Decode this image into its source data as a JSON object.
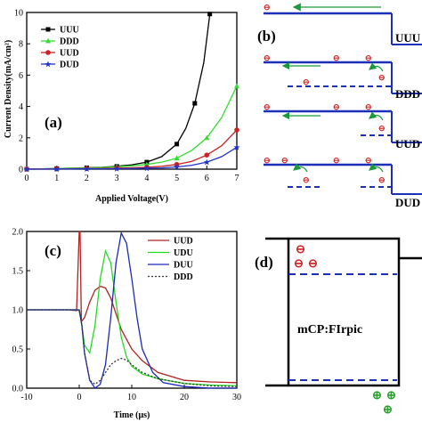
{
  "panel_labels": {
    "a": "(a)",
    "b": "(b)",
    "c": "(c)",
    "d": "(d)"
  },
  "chart_data": [
    {
      "type": "line",
      "panel": "(a)",
      "ylabel": "Current Density(mA/cm²)",
      "xlabel": "Applied Voltage(V)",
      "xlim": [
        0,
        7
      ],
      "ylim": [
        0,
        10
      ],
      "xticks": [
        "0",
        "1",
        "2",
        "3",
        "4",
        "5",
        "6",
        "7"
      ],
      "yticks": [
        "0",
        "2",
        "4",
        "6",
        "8",
        "10"
      ],
      "legend_position": "top-left",
      "series": [
        {
          "name": "UUU",
          "color": "#000000",
          "marker": "square",
          "x": [
            0,
            0.5,
            1,
            1.5,
            2,
            2.5,
            3,
            3.5,
            4,
            4.5,
            5,
            5.3,
            5.6,
            5.9,
            6.1
          ],
          "y": [
            0,
            0.02,
            0.04,
            0.06,
            0.09,
            0.12,
            0.18,
            0.28,
            0.45,
            0.8,
            1.6,
            2.6,
            4.2,
            6.8,
            9.9
          ]
        },
        {
          "name": "DDD",
          "color": "#33dd33",
          "marker": "triangle",
          "x": [
            0,
            0.5,
            1,
            1.5,
            2,
            2.5,
            3,
            3.5,
            4,
            4.5,
            5,
            5.5,
            6,
            6.5,
            7
          ],
          "y": [
            0,
            0.02,
            0.04,
            0.06,
            0.08,
            0.11,
            0.15,
            0.21,
            0.3,
            0.45,
            0.7,
            1.2,
            2.0,
            3.3,
            5.3
          ]
        },
        {
          "name": "UUD",
          "color": "#cc2222",
          "marker": "circle",
          "x": [
            0,
            0.5,
            1,
            1.5,
            2,
            2.5,
            3,
            3.5,
            4,
            4.5,
            5,
            5.5,
            6,
            6.5,
            7
          ],
          "y": [
            0,
            0.01,
            0.02,
            0.03,
            0.04,
            0.05,
            0.07,
            0.09,
            0.12,
            0.18,
            0.3,
            0.5,
            0.9,
            1.5,
            2.5
          ]
        },
        {
          "name": "DUD",
          "color": "#2233cc",
          "marker": "star",
          "x": [
            0,
            0.5,
            1,
            1.5,
            2,
            2.5,
            3,
            3.5,
            4,
            4.5,
            5,
            5.5,
            6,
            6.5,
            7
          ],
          "y": [
            0,
            0.0,
            0.01,
            0.01,
            0.02,
            0.02,
            0.03,
            0.04,
            0.06,
            0.08,
            0.14,
            0.25,
            0.45,
            0.8,
            1.4
          ]
        }
      ]
    },
    {
      "type": "line",
      "panel": "(c)",
      "xlabel": "Time (μs)",
      "xlim": [
        -10,
        30
      ],
      "ylim": [
        0,
        2.0
      ],
      "xticks": [
        "-10",
        "0",
        "10",
        "20",
        "30"
      ],
      "yticks": [
        "0.0",
        "0.5",
        "1.0",
        "1.5",
        "2.0"
      ],
      "legend_position": "top-right",
      "series": [
        {
          "name": "UUD",
          "color": "#b22020",
          "dash": "",
          "x": [
            -10,
            -2,
            -0.5,
            0,
            0.15,
            0.4,
            1,
            2,
            3,
            4,
            5,
            6,
            7,
            8,
            10,
            12,
            15,
            20,
            25,
            30
          ],
          "y": [
            1.0,
            1.0,
            0.99,
            2.0,
            2.0,
            0.85,
            0.9,
            1.1,
            1.25,
            1.3,
            1.28,
            1.15,
            0.95,
            0.75,
            0.5,
            0.35,
            0.2,
            0.1,
            0.08,
            0.07
          ]
        },
        {
          "name": "UDU",
          "color": "#22dd22",
          "dash": "",
          "x": [
            -10,
            -2,
            -0.5,
            0,
            0.5,
            1,
            2,
            3,
            4,
            5,
            6,
            7,
            8,
            9,
            10,
            12,
            15,
            20,
            25,
            30
          ],
          "y": [
            1.0,
            1.0,
            1.0,
            0.99,
            0.8,
            0.55,
            0.45,
            0.8,
            1.4,
            1.75,
            1.6,
            1.1,
            0.65,
            0.4,
            0.28,
            0.18,
            0.12,
            0.06,
            0.04,
            0.03
          ]
        },
        {
          "name": "DUU",
          "color": "#1a2abb",
          "dash": "",
          "x": [
            -10,
            -2,
            -0.5,
            0,
            0.5,
            1,
            2,
            3,
            4,
            5,
            6,
            7,
            8,
            9,
            10,
            11,
            12,
            14,
            16,
            20,
            25,
            30
          ],
          "y": [
            1.0,
            1.0,
            1.0,
            1.0,
            0.8,
            0.45,
            0.1,
            0.0,
            0.05,
            0.3,
            0.9,
            1.6,
            1.98,
            1.85,
            1.4,
            0.9,
            0.5,
            0.2,
            0.07,
            0.02,
            0.0,
            0.0
          ]
        },
        {
          "name": "DDD",
          "color": "#333333",
          "dash": "2,2",
          "x": [
            -10,
            -2,
            -0.5,
            0,
            0.5,
            1,
            2,
            3,
            4,
            5,
            6,
            7,
            8,
            9,
            10,
            12,
            15,
            20,
            25,
            30
          ],
          "y": [
            1.0,
            1.0,
            1.0,
            1.0,
            0.8,
            0.45,
            0.1,
            0.05,
            0.1,
            0.2,
            0.3,
            0.35,
            0.38,
            0.36,
            0.3,
            0.2,
            0.12,
            0.06,
            0.03,
            0.02
          ]
        }
      ]
    }
  ],
  "diagram_b": {
    "layer_labels": [
      "UUU",
      "DDD",
      "UUD",
      "DUD"
    ],
    "electron": "⊖"
  },
  "diagram_d": {
    "material": "mCP:FIrpic",
    "electron": "⊖",
    "hole": "⊕"
  }
}
